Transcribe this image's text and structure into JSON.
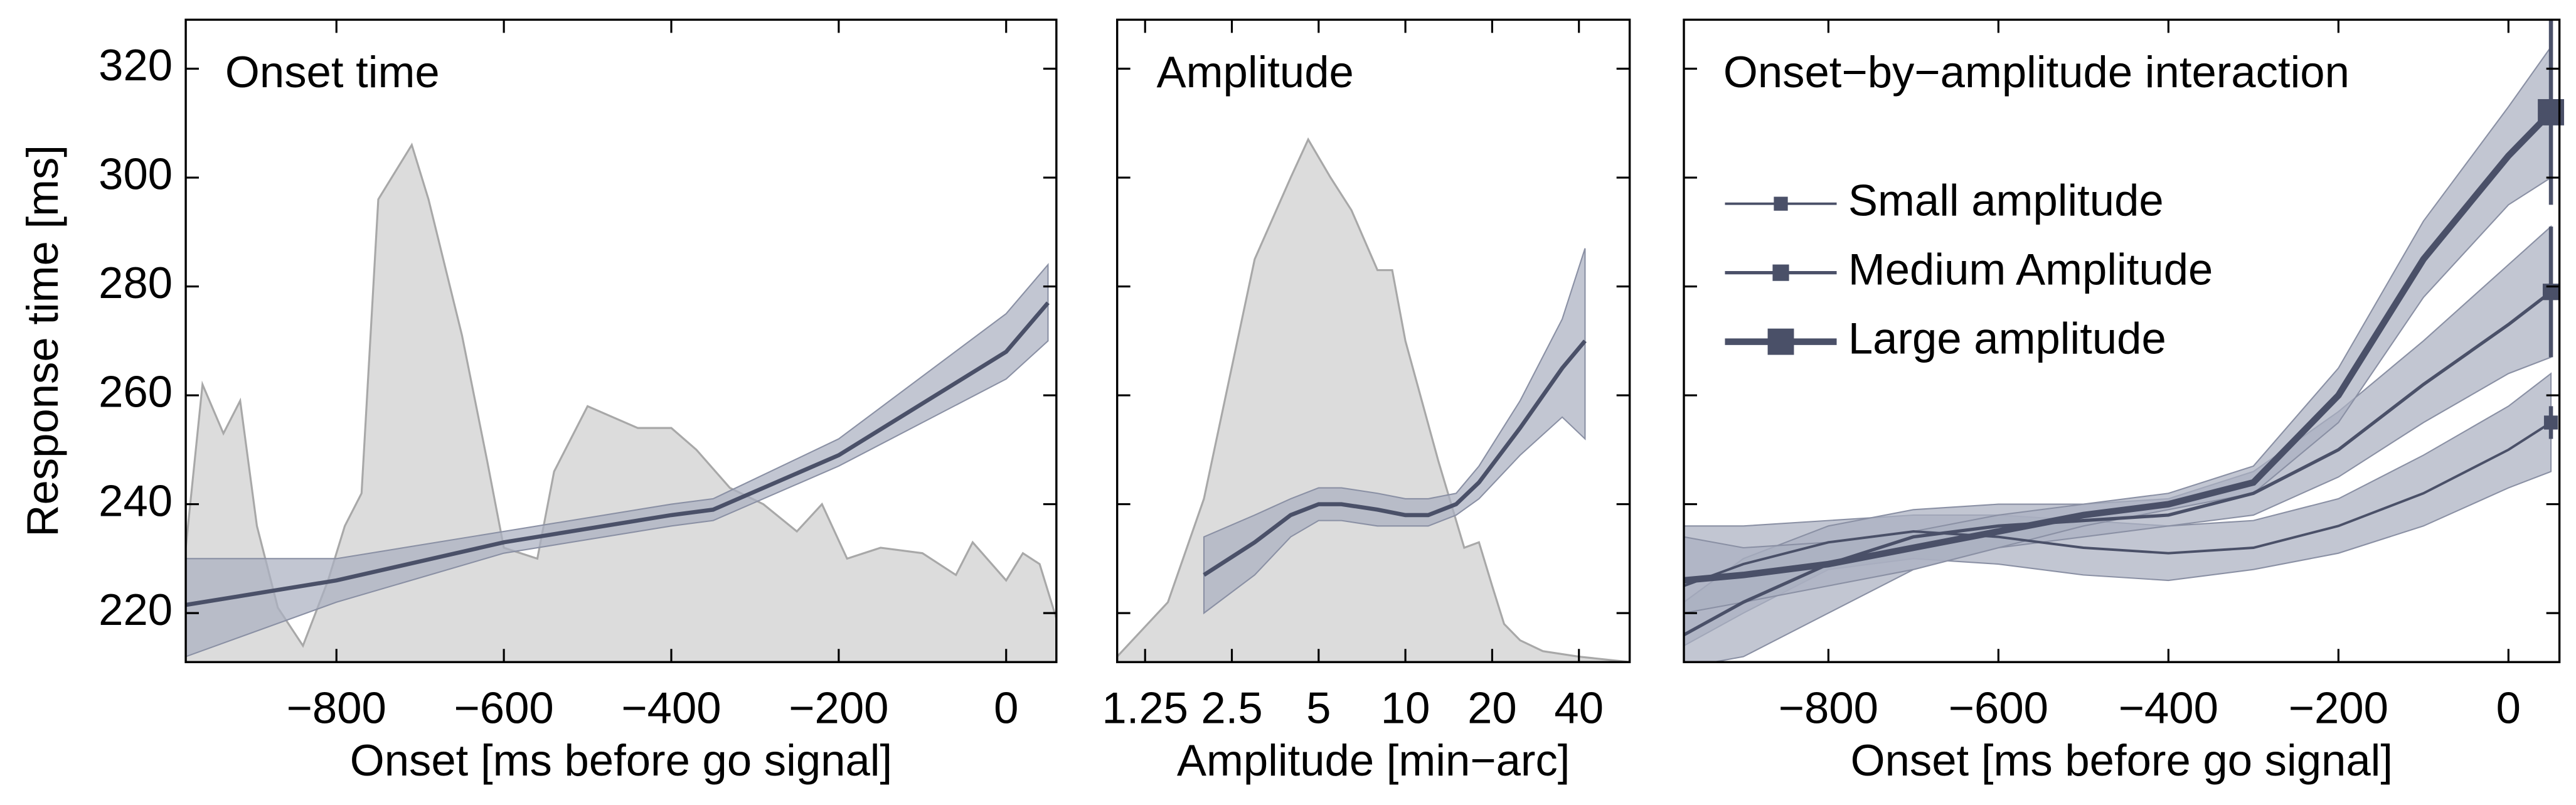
{
  "chart_data": [
    {
      "type": "line",
      "title": "Onset time",
      "xlabel": "Onset [ms before go signal]",
      "ylabel": "Response time [ms]",
      "xlim": [
        -980,
        60
      ],
      "ylim": [
        211,
        329
      ],
      "xticks": [
        {
          "value": -800,
          "label": "−800"
        },
        {
          "value": -600,
          "label": "−600"
        },
        {
          "value": -400,
          "label": "−400"
        },
        {
          "value": -200,
          "label": "−200"
        },
        0
      ],
      "yticks": [
        220,
        240,
        260,
        280,
        300,
        320
      ],
      "density": {
        "color": "#dcdcdc",
        "x": [
          -980,
          -960,
          -935,
          -915,
          -895,
          -870,
          -840,
          -810,
          -790,
          -770,
          -750,
          -710,
          -690,
          -650,
          -620,
          -600,
          -560,
          -540,
          -500,
          -470,
          -440,
          -400,
          -370,
          -330,
          -290,
          -250,
          -220,
          -190,
          -150,
          -100,
          -60,
          -40,
          0,
          20,
          40,
          60
        ],
        "values": [
          232,
          262,
          253,
          259,
          236,
          221,
          214,
          226,
          236,
          242,
          296,
          306,
          296,
          271,
          248,
          232,
          230,
          246,
          258,
          256,
          254,
          254,
          250,
          243,
          240,
          235,
          240,
          230,
          232,
          231,
          227,
          233,
          226,
          231,
          229,
          219
        ]
      },
      "x": [
        -980,
        -800,
        -600,
        -400,
        -350,
        -200,
        0,
        50
      ],
      "series": [
        {
          "color": "#4a5068",
          "width": 2.5,
          "values": [
            221.5,
            226,
            233,
            238,
            239,
            249,
            268,
            277
          ],
          "lower": [
            212,
            222,
            231,
            236,
            237,
            247,
            263,
            270
          ],
          "upper": [
            230,
            230,
            235,
            240,
            241,
            252,
            275,
            284
          ]
        }
      ]
    },
    {
      "type": "line",
      "title": "Amplitude",
      "xlabel": "Amplitude [min−arc]",
      "log_x": true,
      "xlim": [
        1,
        60
      ],
      "ylim": [
        211,
        329
      ],
      "xticks": [
        1.25,
        2.5,
        5,
        10,
        20,
        40
      ],
      "yticks": [
        220,
        240,
        260,
        280,
        300,
        320
      ],
      "ytick_labels": false,
      "density": {
        "color": "#dcdcdc",
        "x": [
          1,
          1.5,
          2,
          3,
          4,
          4.6,
          5.5,
          6.5,
          8,
          9,
          10,
          13,
          16,
          18,
          20,
          22,
          25,
          30,
          40,
          60
        ],
        "values": [
          212,
          222,
          241,
          285,
          300,
          307,
          300,
          294,
          283,
          283,
          270,
          248,
          232,
          233,
          225,
          218,
          215,
          213,
          212,
          211
        ]
      },
      "x": [
        2,
        3,
        4,
        5,
        6,
        8,
        10,
        12,
        15,
        18,
        25,
        35,
        42
      ],
      "series": [
        {
          "color": "#4a5068",
          "width": 2.5,
          "values": [
            227,
            233,
            238,
            240,
            240,
            239,
            238,
            238,
            240,
            244,
            254,
            265,
            270
          ],
          "lower": [
            220,
            227,
            234,
            237,
            237,
            236,
            236,
            236,
            238,
            241,
            249,
            256,
            252
          ],
          "upper": [
            234,
            238,
            241,
            243,
            243,
            242,
            241,
            241,
            242,
            247,
            259,
            274,
            287
          ]
        }
      ]
    },
    {
      "type": "line",
      "title": "Onset−by−amplitude interaction",
      "xlabel": "Onset [ms before go signal]",
      "xlim": [
        -970,
        60
      ],
      "ylim": [
        211,
        329
      ],
      "xticks": [
        {
          "value": -800,
          "label": "−800"
        },
        {
          "value": -600,
          "label": "−600"
        },
        {
          "value": -400,
          "label": "−400"
        },
        {
          "value": -200,
          "label": "−200"
        },
        0
      ],
      "yticks": [
        220,
        240,
        260,
        280,
        300,
        320
      ],
      "ytick_labels": false,
      "legend": "upper left",
      "x": [
        -970,
        -900,
        -800,
        -700,
        -600,
        -500,
        -400,
        -300,
        -200,
        -100,
        0,
        50
      ],
      "series": [
        {
          "name": "Small amplitude",
          "color": "#4a5068",
          "width": 1.5,
          "error": 3,
          "values": [
            225,
            229,
            233,
            235,
            234,
            232,
            231,
            232,
            236,
            242,
            250,
            255
          ],
          "lower": [
            214,
            220,
            228,
            230,
            229,
            227,
            226,
            228,
            231,
            236,
            243,
            246
          ],
          "upper": [
            236,
            236,
            237,
            238,
            238,
            237,
            236,
            237,
            241,
            249,
            258,
            264
          ]
        },
        {
          "name": "Medium Amplitude",
          "color": "#4a5068",
          "width": 2,
          "error": 12,
          "values": [
            216,
            222,
            229,
            234,
            236,
            237,
            238,
            242,
            250,
            262,
            273,
            279
          ],
          "lower": [
            210,
            212,
            220,
            228,
            232,
            234,
            236,
            238,
            245,
            255,
            264,
            267
          ],
          "upper": [
            222,
            230,
            236,
            239,
            240,
            240,
            241,
            246,
            257,
            270,
            284,
            291
          ]
        },
        {
          "name": "Large amplitude",
          "color": "#4a5068",
          "width": 4,
          "error": 17,
          "values": [
            226,
            227,
            229,
            232,
            235,
            238,
            240,
            244,
            260,
            285,
            304,
            312
          ],
          "lower": [
            220,
            222,
            225,
            228,
            232,
            236,
            239,
            242,
            255,
            278,
            295,
            300
          ],
          "upper": [
            234,
            232,
            233,
            235,
            238,
            240,
            242,
            247,
            265,
            292,
            313,
            324
          ]
        }
      ]
    }
  ]
}
